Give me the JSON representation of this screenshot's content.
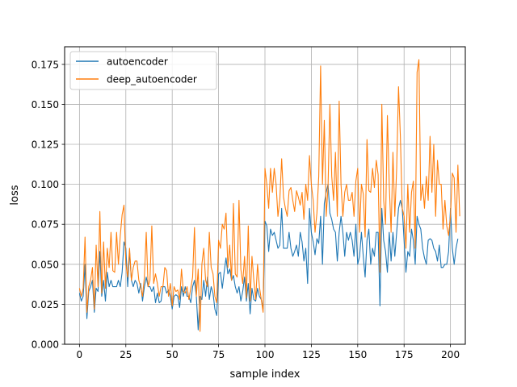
{
  "chart_data": {
    "type": "line",
    "title": "",
    "xlabel": "sample index",
    "ylabel": "loss",
    "xlim": [
      -8,
      208
    ],
    "ylim": [
      0,
      0.186
    ],
    "grid": true,
    "legend": "top-left",
    "x_ticks": [
      0,
      25,
      50,
      75,
      100,
      125,
      150,
      175,
      200
    ],
    "x_tick_labels": [
      "0",
      "25",
      "50",
      "75",
      "100",
      "125",
      "150",
      "175",
      "200"
    ],
    "y_ticks": [
      0,
      0.025,
      0.05,
      0.075,
      0.1,
      0.125,
      0.15,
      0.175
    ],
    "y_tick_labels": [
      "0.000",
      "0.025",
      "0.050",
      "0.075",
      "0.100",
      "0.125",
      "0.150",
      "0.175"
    ],
    "series": [
      {
        "name": "autoencoder",
        "color": "#1f77b4",
        "values": [
          0.032,
          0.027,
          0.03,
          0.05,
          0.016,
          0.033,
          0.036,
          0.04,
          0.02,
          0.035,
          0.033,
          0.058,
          0.03,
          0.04,
          0.027,
          0.045,
          0.036,
          0.04,
          0.036,
          0.036,
          0.036,
          0.04,
          0.036,
          0.045,
          0.064,
          0.06,
          0.036,
          0.058,
          0.04,
          0.036,
          0.04,
          0.038,
          0.032,
          0.038,
          0.027,
          0.036,
          0.042,
          0.036,
          0.036,
          0.033,
          0.036,
          0.026,
          0.032,
          0.026,
          0.027,
          0.036,
          0.036,
          0.032,
          0.034,
          0.03,
          0.022,
          0.03,
          0.031,
          0.03,
          0.023,
          0.036,
          0.03,
          0.036,
          0.03,
          0.03,
          0.026,
          0.036,
          0.04,
          0.03,
          0.009,
          0.03,
          0.028,
          0.04,
          0.03,
          0.042,
          0.028,
          0.036,
          0.032,
          0.022,
          0.018,
          0.044,
          0.045,
          0.035,
          0.045,
          0.054,
          0.044,
          0.047,
          0.04,
          0.043,
          0.036,
          0.032,
          0.036,
          0.027,
          0.033,
          0.042,
          0.027,
          0.038,
          0.019,
          0.035,
          0.028,
          0.027,
          0.035,
          0.03,
          0.028,
          0.022,
          0.077,
          0.074,
          0.058,
          0.072,
          0.068,
          0.07,
          0.065,
          0.06,
          0.062,
          0.085,
          0.06,
          0.06,
          0.06,
          0.07,
          0.06,
          0.055,
          0.058,
          0.062,
          0.055,
          0.07,
          0.064,
          0.052,
          0.06,
          0.038,
          0.085,
          0.07,
          0.064,
          0.056,
          0.066,
          0.063,
          0.08,
          0.05,
          0.088,
          0.095,
          0.1,
          0.082,
          0.078,
          0.072,
          0.07,
          0.052,
          0.07,
          0.08,
          0.07,
          0.055,
          0.07,
          0.065,
          0.07,
          0.065,
          0.055,
          0.075,
          0.05,
          0.055,
          0.07,
          0.055,
          0.042,
          0.065,
          0.072,
          0.05,
          0.06,
          0.055,
          0.07,
          0.07,
          0.024,
          0.085,
          0.065,
          0.058,
          0.045,
          0.07,
          0.052,
          0.07,
          0.055,
          0.07,
          0.085,
          0.09,
          0.085,
          0.065,
          0.045,
          0.058,
          0.055,
          0.072,
          0.065,
          0.05,
          0.08,
          0.075,
          0.072,
          0.06,
          0.054,
          0.05,
          0.065,
          0.066,
          0.065,
          0.06,
          0.058,
          0.052,
          0.062,
          0.048,
          0.048,
          0.05,
          0.05,
          0.058,
          0.085,
          0.06,
          0.05,
          0.06,
          0.066
        ]
      },
      {
        "name": "deep_autoencoder",
        "color": "#ff7f0e",
        "values": [
          0.035,
          0.03,
          0.035,
          0.067,
          0.02,
          0.036,
          0.04,
          0.048,
          0.022,
          0.062,
          0.036,
          0.083,
          0.032,
          0.064,
          0.035,
          0.06,
          0.048,
          0.07,
          0.046,
          0.045,
          0.07,
          0.05,
          0.068,
          0.081,
          0.087,
          0.05,
          0.042,
          0.06,
          0.04,
          0.048,
          0.052,
          0.052,
          0.04,
          0.036,
          0.03,
          0.042,
          0.07,
          0.036,
          0.04,
          0.074,
          0.038,
          0.044,
          0.038,
          0.03,
          0.036,
          0.036,
          0.048,
          0.046,
          0.03,
          0.038,
          0.024,
          0.036,
          0.033,
          0.034,
          0.028,
          0.047,
          0.033,
          0.032,
          0.036,
          0.028,
          0.035,
          0.042,
          0.073,
          0.03,
          0.047,
          0.008,
          0.05,
          0.06,
          0.04,
          0.036,
          0.07,
          0.048,
          0.044,
          0.03,
          0.026,
          0.065,
          0.06,
          0.075,
          0.072,
          0.082,
          0.048,
          0.062,
          0.04,
          0.088,
          0.044,
          0.042,
          0.09,
          0.047,
          0.038,
          0.055,
          0.029,
          0.074,
          0.027,
          0.055,
          0.04,
          0.028,
          0.05,
          0.036,
          0.028,
          0.02,
          0.11,
          0.1,
          0.085,
          0.11,
          0.095,
          0.11,
          0.1,
          0.08,
          0.09,
          0.116,
          0.092,
          0.085,
          0.08,
          0.096,
          0.098,
          0.09,
          0.083,
          0.096,
          0.092,
          0.087,
          0.095,
          0.078,
          0.1,
          0.09,
          0.118,
          0.1,
          0.09,
          0.07,
          0.082,
          0.105,
          0.174,
          0.1,
          0.14,
          0.08,
          0.098,
          0.15,
          0.105,
          0.09,
          0.12,
          0.08,
          0.152,
          0.1,
          0.08,
          0.095,
          0.1,
          0.09,
          0.09,
          0.095,
          0.08,
          0.102,
          0.11,
          0.07,
          0.1,
          0.094,
          0.067,
          0.128,
          0.096,
          0.095,
          0.11,
          0.098,
          0.115,
          0.106,
          0.045,
          0.15,
          0.09,
          0.075,
          0.143,
          0.1,
          0.07,
          0.12,
          0.08,
          0.11,
          0.161,
          0.13,
          0.085,
          0.08,
          0.06,
          0.1,
          0.07,
          0.095,
          0.102,
          0.06,
          0.17,
          0.178,
          0.09,
          0.1,
          0.085,
          0.105,
          0.09,
          0.13,
          0.095,
          0.125,
          0.08,
          0.115,
          0.1,
          0.1,
          0.072,
          0.09,
          0.074,
          0.068,
          0.08,
          0.107,
          0.104,
          0.07,
          0.112,
          0.08
        ]
      }
    ]
  }
}
